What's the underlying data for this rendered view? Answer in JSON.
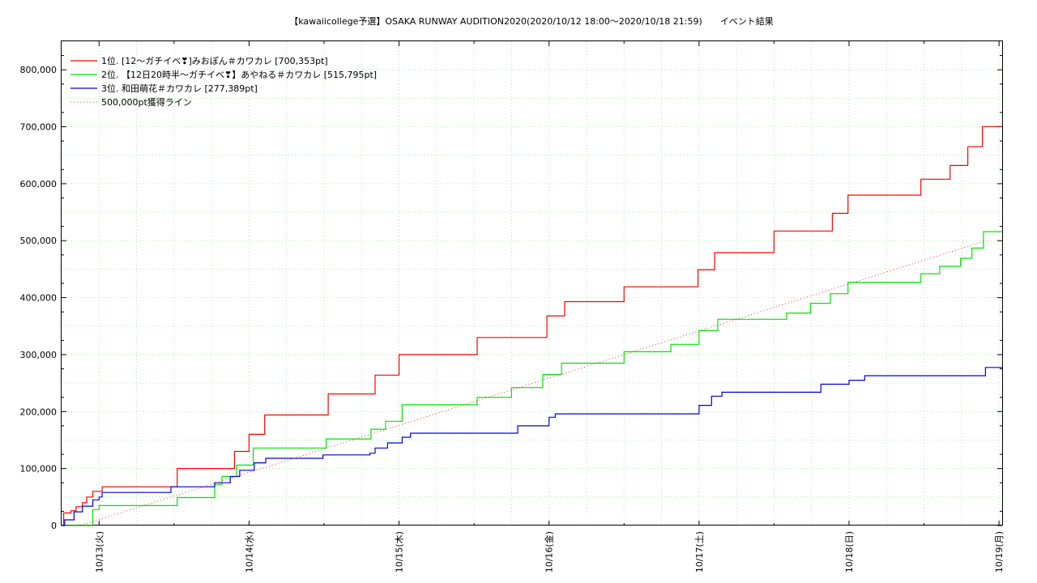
{
  "chart_data": {
    "type": "line",
    "title": "【kawaiicollege予選】OSAKA RUNWAY AUDITION2020(2020/10/12 18:00〜2020/10/18 21:59)　　イベント結果",
    "x_range": [
      "2020/10/12 18:00",
      "2020/10/19 00:30"
    ],
    "ylim": [
      0,
      850000
    ],
    "y_ticks": [
      0,
      100000,
      200000,
      300000,
      400000,
      500000,
      600000,
      700000,
      800000
    ],
    "y_tick_labels": [
      "0",
      "100,000",
      "200,000",
      "300,000",
      "400,000",
      "500,000",
      "600,000",
      "700,000",
      "800,000"
    ],
    "x_ticks": [
      {
        "t": "2020/10/13 00:00",
        "label": "10/13(火)"
      },
      {
        "t": "2020/10/14 00:00",
        "label": "10/14(水)"
      },
      {
        "t": "2020/10/15 00:00",
        "label": "10/15(木)"
      },
      {
        "t": "2020/10/16 00:00",
        "label": "10/16(金)"
      },
      {
        "t": "2020/10/17 00:00",
        "label": "10/17(土)"
      },
      {
        "t": "2020/10/18 00:00",
        "label": "10/18(日)"
      },
      {
        "t": "2020/10/19 00:00",
        "label": "10/19(月)"
      }
    ],
    "grid": true,
    "legend_position": "top-left",
    "series": [
      {
        "name": "1位. [12〜ガチイベ❣]みおぽん＃カワカレ [700,353pt]",
        "color": "#ff0000",
        "style": "step",
        "points": [
          [
            "2020/10/12 18:00",
            0
          ],
          [
            "2020/10/12 18:20",
            22000
          ],
          [
            "2020/10/12 19:30",
            26000
          ],
          [
            "2020/10/12 20:20",
            33000
          ],
          [
            "2020/10/12 21:20",
            40000
          ],
          [
            "2020/10/12 22:00",
            50000
          ],
          [
            "2020/10/12 23:00",
            60000
          ],
          [
            "2020/10/13 00:30",
            68000
          ],
          [
            "2020/10/13 12:30",
            100000
          ],
          [
            "2020/10/13 21:40",
            130000
          ],
          [
            "2020/10/14 00:00",
            160000
          ],
          [
            "2020/10/14 02:30",
            194000
          ],
          [
            "2020/10/14 12:40",
            231000
          ],
          [
            "2020/10/14 20:10",
            264000
          ],
          [
            "2020/10/15 00:00",
            300000
          ],
          [
            "2020/10/15 12:30",
            330000
          ],
          [
            "2020/10/15 23:40",
            368000
          ],
          [
            "2020/10/16 02:30",
            393000
          ],
          [
            "2020/10/16 12:00",
            419000
          ],
          [
            "2020/10/16 23:50",
            449000
          ],
          [
            "2020/10/17 02:30",
            479000
          ],
          [
            "2020/10/17 12:00",
            517000
          ],
          [
            "2020/10/17 21:20",
            548000
          ],
          [
            "2020/10/17 23:50",
            580000
          ],
          [
            "2020/10/18 11:30",
            608000
          ],
          [
            "2020/10/18 16:10",
            632000
          ],
          [
            "2020/10/18 19:00",
            665000
          ],
          [
            "2020/10/18 21:20",
            700353
          ],
          [
            "2020/10/19 00:30",
            700353
          ]
        ]
      },
      {
        "name": "2位. 【12日20時半〜ガチイベ❣】あやねる＃カワカレ [515,795pt]",
        "color": "#00e600",
        "style": "step",
        "points": [
          [
            "2020/10/12 18:00",
            0
          ],
          [
            "2020/10/12 21:00",
            0
          ],
          [
            "2020/10/12 23:00",
            28000
          ],
          [
            "2020/10/13 00:00",
            35000
          ],
          [
            "2020/10/13 09:00",
            35000
          ],
          [
            "2020/10/13 12:30",
            49000
          ],
          [
            "2020/10/13 18:30",
            72000
          ],
          [
            "2020/10/13 19:40",
            86000
          ],
          [
            "2020/10/13 22:00",
            106000
          ],
          [
            "2020/10/14 00:40",
            136000
          ],
          [
            "2020/10/14 12:20",
            152000
          ],
          [
            "2020/10/14 19:30",
            169000
          ],
          [
            "2020/10/14 21:50",
            183000
          ],
          [
            "2020/10/15 00:30",
            212000
          ],
          [
            "2020/10/15 12:30",
            225000
          ],
          [
            "2020/10/15 18:00",
            242000
          ],
          [
            "2020/10/15 23:00",
            265000
          ],
          [
            "2020/10/16 02:00",
            285000
          ],
          [
            "2020/10/16 12:00",
            305000
          ],
          [
            "2020/10/16 19:30",
            318000
          ],
          [
            "2020/10/17 00:00",
            342000
          ],
          [
            "2020/10/17 03:00",
            362000
          ],
          [
            "2020/10/17 14:00",
            373000
          ],
          [
            "2020/10/17 17:50",
            390000
          ],
          [
            "2020/10/17 21:00",
            407000
          ],
          [
            "2020/10/17 23:50",
            427000
          ],
          [
            "2020/10/18 11:30",
            442000
          ],
          [
            "2020/10/18 14:30",
            455000
          ],
          [
            "2020/10/18 17:50",
            469000
          ],
          [
            "2020/10/18 19:40",
            487000
          ],
          [
            "2020/10/18 21:30",
            515795
          ],
          [
            "2020/10/19 00:30",
            515795
          ]
        ]
      },
      {
        "name": "3位. 和田萌花＃カワカレ [277,389pt]",
        "color": "#0000e6",
        "style": "step",
        "points": [
          [
            "2020/10/12 18:00",
            0
          ],
          [
            "2020/10/12 18:30",
            10000
          ],
          [
            "2020/10/12 20:00",
            24000
          ],
          [
            "2020/10/12 21:20",
            34000
          ],
          [
            "2020/10/12 23:00",
            45000
          ],
          [
            "2020/10/13 00:00",
            50000
          ],
          [
            "2020/10/13 00:30",
            58000
          ],
          [
            "2020/10/13 11:30",
            68000
          ],
          [
            "2020/10/13 18:30",
            75000
          ],
          [
            "2020/10/13 21:00",
            86000
          ],
          [
            "2020/10/13 22:30",
            97000
          ],
          [
            "2020/10/14 00:50",
            110000
          ],
          [
            "2020/10/14 02:40",
            118000
          ],
          [
            "2020/10/14 11:50",
            124000
          ],
          [
            "2020/10/14 19:20",
            127000
          ],
          [
            "2020/10/14 20:10",
            136000
          ],
          [
            "2020/10/14 22:10",
            145000
          ],
          [
            "2020/10/15 00:30",
            155000
          ],
          [
            "2020/10/15 01:50",
            162000
          ],
          [
            "2020/10/15 19:00",
            175000
          ],
          [
            "2020/10/16 00:00",
            190000
          ],
          [
            "2020/10/16 01:00",
            196000
          ],
          [
            "2020/10/17 00:00",
            211000
          ],
          [
            "2020/10/17 02:00",
            227000
          ],
          [
            "2020/10/17 03:40",
            234000
          ],
          [
            "2020/10/17 19:30",
            248000
          ],
          [
            "2020/10/18 00:00",
            255000
          ],
          [
            "2020/10/18 02:30",
            263000
          ],
          [
            "2020/10/18 21:00",
            263000
          ],
          [
            "2020/10/18 21:50",
            277389
          ],
          [
            "2020/10/19 00:30",
            277389
          ]
        ]
      },
      {
        "name": "500,000pt獲得ライン",
        "color": "#ff0000",
        "style": "dotted-linear",
        "points": [
          [
            "2020/10/12 21:00",
            0
          ],
          [
            "2020/10/18 21:59",
            500000
          ]
        ]
      }
    ]
  }
}
